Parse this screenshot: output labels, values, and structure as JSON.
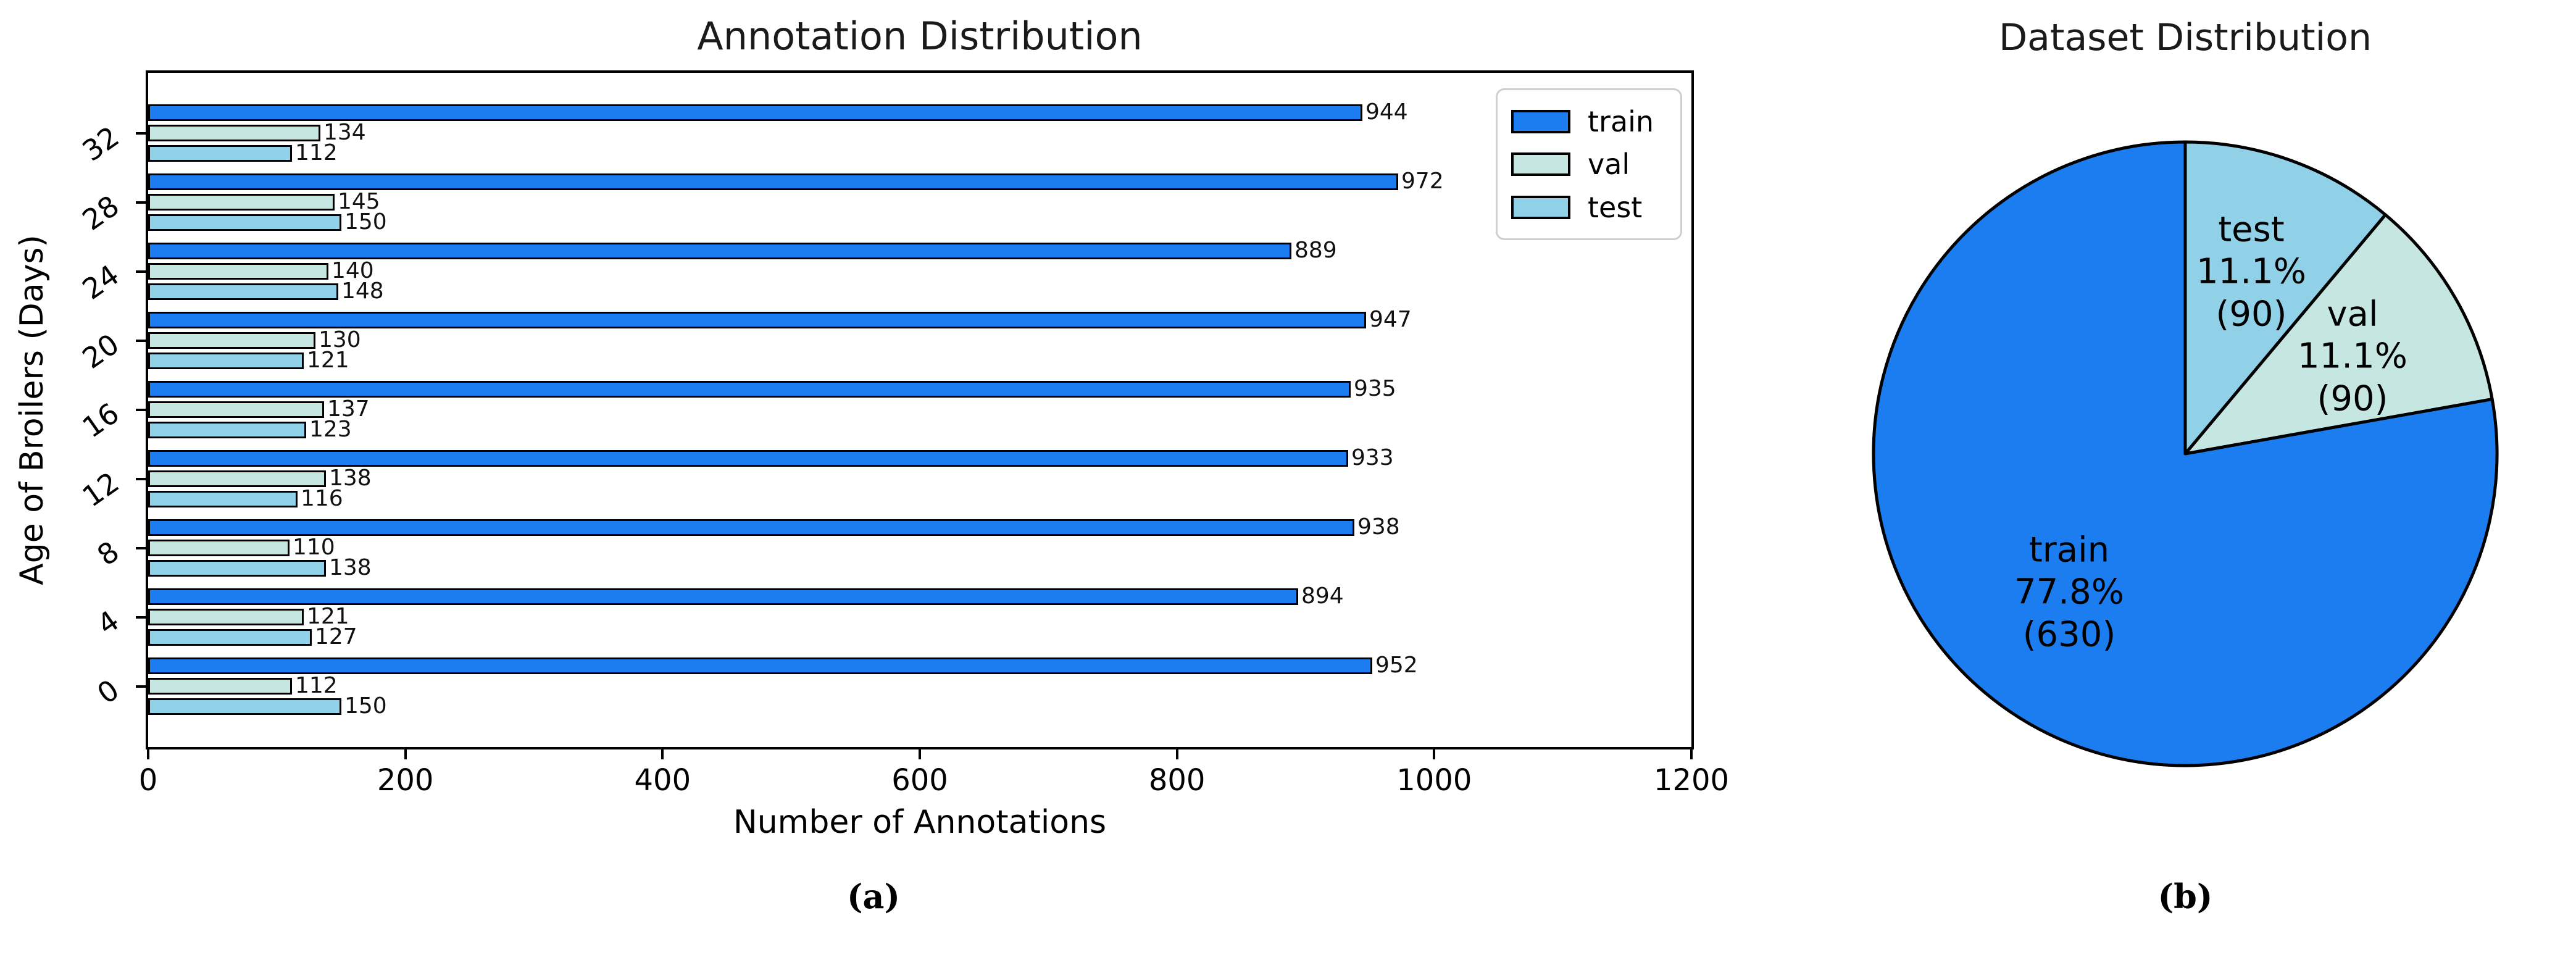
{
  "figure": {
    "caption_a": "(a)",
    "caption_b": "(b)"
  },
  "colors": {
    "train": "#1b7df0",
    "val": "#c6e6e1",
    "test": "#91d1e8",
    "edge": "#000000"
  },
  "chart_data": [
    {
      "type": "bar",
      "orientation": "horizontal",
      "title": "Annotation Distribution",
      "xlabel": "Number of Annotations",
      "ylabel": "Age of Broilers (Days)",
      "xlim": [
        0,
        1200
      ],
      "xticks": [
        0,
        200,
        400,
        600,
        800,
        1000,
        1200
      ],
      "categories": [
        32,
        28,
        24,
        20,
        16,
        12,
        8,
        4,
        0
      ],
      "grid": false,
      "legend_position": "upper right",
      "series": [
        {
          "name": "train",
          "color": "#1b7df0",
          "values": [
            944,
            972,
            889,
            947,
            935,
            933,
            938,
            894,
            952
          ]
        },
        {
          "name": "val",
          "color": "#c6e6e1",
          "values": [
            134,
            145,
            140,
            130,
            137,
            138,
            110,
            121,
            112
          ]
        },
        {
          "name": "test",
          "color": "#91d1e8",
          "values": [
            112,
            150,
            148,
            121,
            123,
            116,
            138,
            127,
            150
          ]
        }
      ]
    },
    {
      "type": "pie",
      "title": "Dataset Distribution",
      "start_angle": "top",
      "direction": "clockwise",
      "slices": [
        {
          "name": "test",
          "pct": 11.1,
          "count": 90,
          "color": "#91d1e8"
        },
        {
          "name": "val",
          "pct": 11.1,
          "count": 90,
          "color": "#c6e6e1"
        },
        {
          "name": "train",
          "pct": 77.8,
          "count": 630,
          "color": "#1b7df0"
        }
      ]
    }
  ]
}
